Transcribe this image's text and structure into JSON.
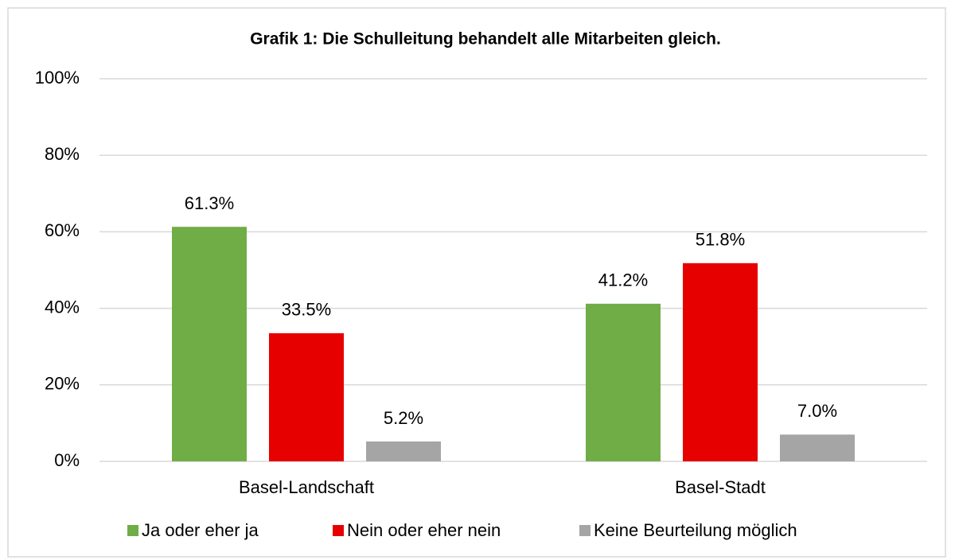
{
  "chart_data": {
    "type": "bar",
    "title": "Grafik 1: Die Schulleitung behandelt alle Mitarbeiten gleich.",
    "categories": [
      "Basel-Landschaft",
      "Basel-Stadt"
    ],
    "series": [
      {
        "name": "Ja oder eher ja",
        "color": "#70ad47",
        "values": [
          61.3,
          41.2
        ],
        "value_labels": [
          "61.3%",
          "41.2%"
        ]
      },
      {
        "name": "Nein oder eher nein",
        "color": "#e60000",
        "values": [
          33.5,
          51.8
        ],
        "value_labels": [
          "33.5%",
          "51.8%"
        ]
      },
      {
        "name": "Keine Beurteilung möglich",
        "color": "#a5a5a5",
        "values": [
          5.2,
          7.0
        ],
        "value_labels": [
          "5.2%",
          "7.0%"
        ]
      }
    ],
    "ylim": [
      0,
      100
    ],
    "yticks": [
      {
        "value": 0,
        "label": "0%"
      },
      {
        "value": 20,
        "label": "20%"
      },
      {
        "value": 40,
        "label": "40%"
      },
      {
        "value": 60,
        "label": "60%"
      },
      {
        "value": 80,
        "label": "80%"
      },
      {
        "value": 100,
        "label": "100%"
      }
    ],
    "grid": true,
    "legend": "bottom"
  }
}
